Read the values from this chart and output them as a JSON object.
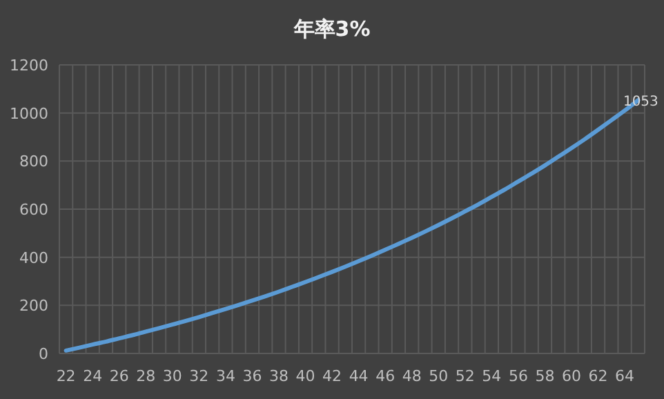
{
  "chart_data": {
    "type": "line",
    "title": "年率3%",
    "categories": [
      "22",
      null,
      "24",
      null,
      "26",
      null,
      "28",
      null,
      "30",
      null,
      "32",
      null,
      "34",
      null,
      "36",
      null,
      "38",
      null,
      "40",
      null,
      "42",
      null,
      "44",
      null,
      "46",
      null,
      "48",
      null,
      "50",
      null,
      "52",
      null,
      "54",
      null,
      "56",
      null,
      "58",
      null,
      "60",
      null,
      "62",
      null,
      "64",
      null
    ],
    "series": [
      {
        "color": "#5b9bd5",
        "values": [
          12,
          24,
          37,
          49,
          63,
          76,
          91,
          105,
          120,
          135,
          151,
          168,
          185,
          202,
          220,
          238,
          257,
          277,
          297,
          318,
          339,
          361,
          384,
          407,
          431,
          456,
          481,
          507,
          534,
          562,
          591,
          620,
          651,
          682,
          715,
          748,
          782,
          818,
          854,
          891,
          930,
          970,
          1010,
          1053
        ],
        "value_labels": [
          null,
          null,
          null,
          null,
          null,
          null,
          null,
          null,
          null,
          null,
          null,
          null,
          null,
          null,
          null,
          null,
          null,
          null,
          null,
          null,
          null,
          null,
          null,
          null,
          null,
          null,
          null,
          null,
          null,
          null,
          null,
          null,
          null,
          null,
          null,
          null,
          null,
          null,
          null,
          null,
          null,
          null,
          null,
          "1053"
        ]
      }
    ],
    "ylim": [
      0,
      1200
    ],
    "yticks": [
      0,
      200,
      400,
      600,
      800,
      1000,
      1200
    ],
    "grid": true,
    "marker": "none",
    "line_style": "solid"
  }
}
